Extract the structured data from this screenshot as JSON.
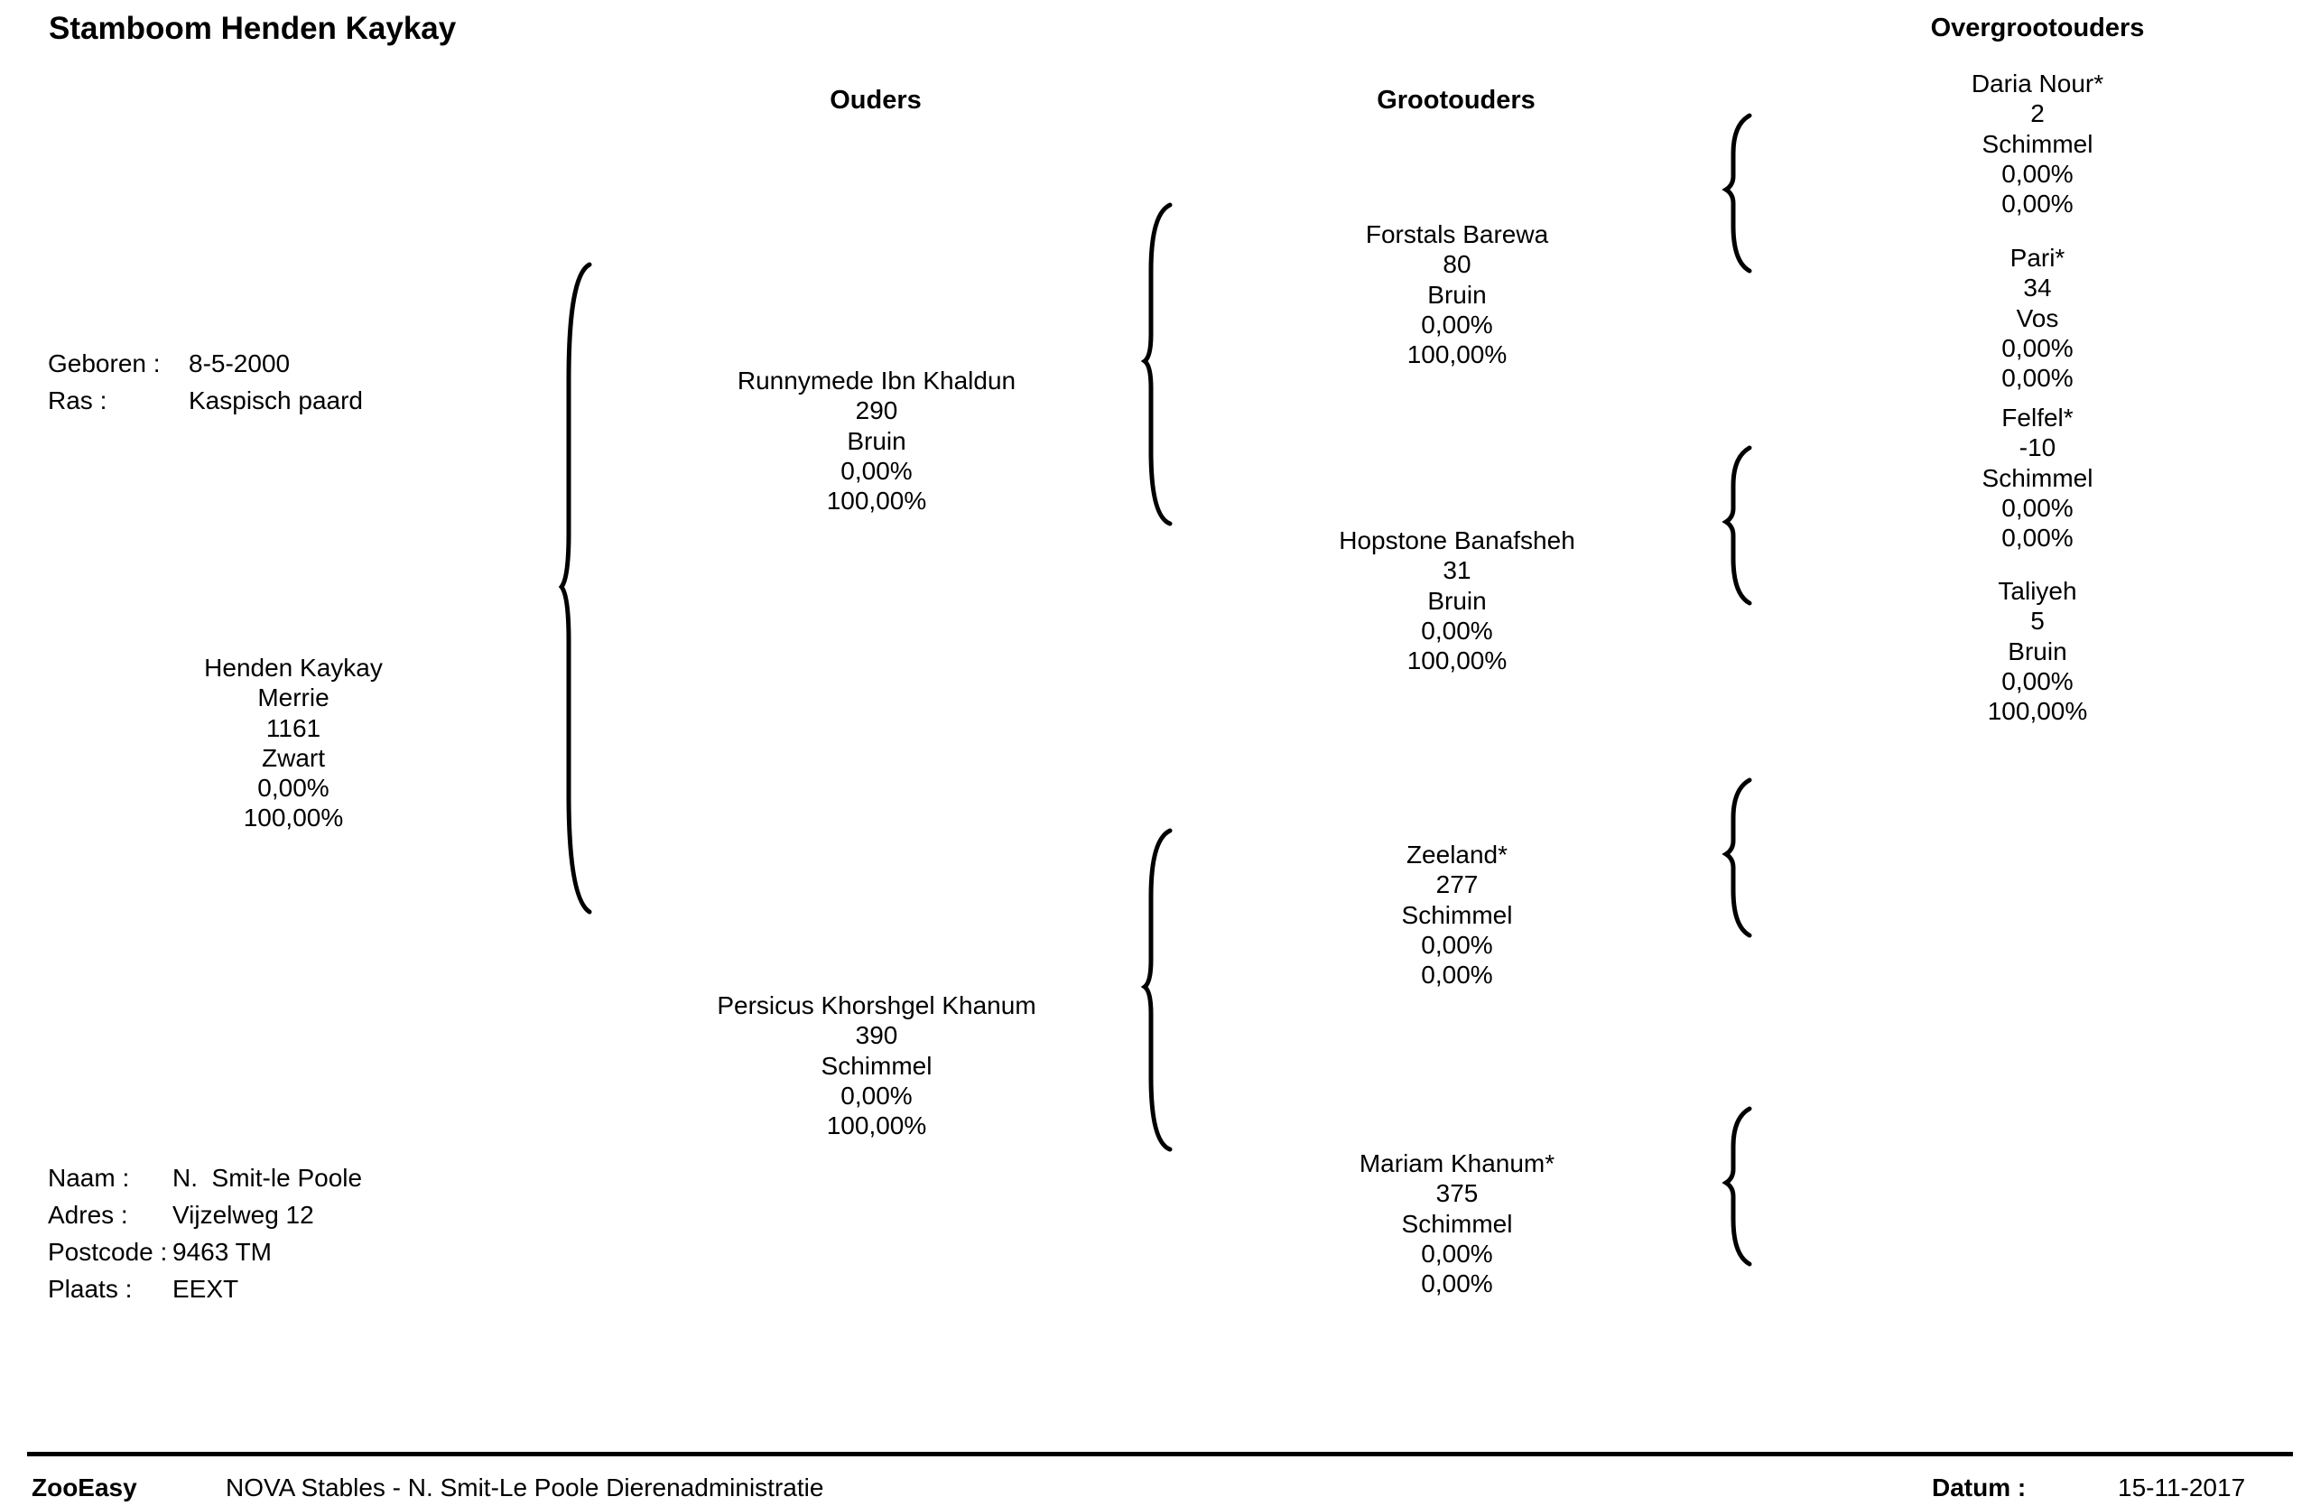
{
  "title": "Stamboom Henden Kaykay",
  "columns": {
    "ouders": "Ouders",
    "grootouders": "Grootouders",
    "overgrootouders": "Overgrootouders"
  },
  "info": {
    "geboren_label": "Geboren :",
    "geboren_value": "8-5-2000",
    "ras_label": "Ras :",
    "ras_value": "Kaspisch paard"
  },
  "subject": {
    "lines": [
      "Henden Kaykay",
      "Merrie",
      "1161",
      "Zwart",
      "0,00%",
      "100,00%"
    ]
  },
  "parents": [
    {
      "lines": [
        "Runnymede Ibn Khaldun",
        "290",
        "Bruin",
        "0,00%",
        "100,00%"
      ]
    },
    {
      "lines": [
        "Persicus Khorshgel Khanum",
        "390",
        "Schimmel",
        "0,00%",
        "100,00%"
      ]
    }
  ],
  "grandparents": [
    {
      "lines": [
        "Forstals Barewa",
        "80",
        "Bruin",
        "0,00%",
        "100,00%"
      ]
    },
    {
      "lines": [
        "Hopstone Banafsheh",
        "31",
        "Bruin",
        "0,00%",
        "100,00%"
      ]
    },
    {
      "lines": [
        "Zeeland*",
        "277",
        "Schimmel",
        "0,00%",
        "0,00%"
      ]
    },
    {
      "lines": [
        "Mariam Khanum*",
        "375",
        "Schimmel",
        "0,00%",
        "0,00%"
      ]
    }
  ],
  "great_grandparents": [
    {
      "lines": [
        "Daria Nour*",
        "2",
        "Schimmel",
        "0,00%",
        "0,00%"
      ]
    },
    {
      "lines": [
        "Pari*",
        "34",
        "Vos",
        "0,00%",
        "0,00%"
      ]
    },
    {
      "lines": [
        "Felfel*",
        "-10",
        "Schimmel",
        "0,00%",
        "0,00%"
      ]
    },
    {
      "lines": [
        "Taliyeh",
        "5",
        "Bruin",
        "0,00%",
        "100,00%"
      ]
    }
  ],
  "owner": {
    "naam_label": "Naam :",
    "naam_value": "N.  Smit-le Poole",
    "adres_label": "Adres :",
    "adres_value": "Vijzelweg 12",
    "postcode_label": "Postcode :",
    "postcode_value": "9463 TM",
    "plaats_label": "Plaats :",
    "plaats_value": "EEXT"
  },
  "footer": {
    "brand": "ZooEasy",
    "org": "NOVA Stables - N. Smit-Le Poole Dierenadministratie",
    "datum_label": "Datum :",
    "datum_value": "15-11-2017"
  }
}
